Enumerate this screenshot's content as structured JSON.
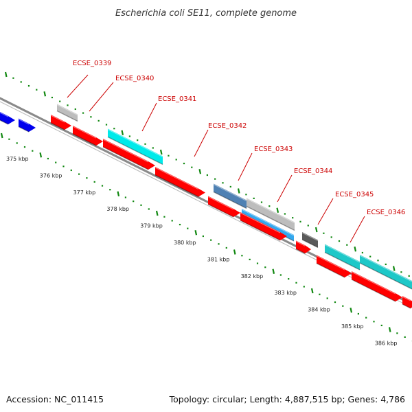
{
  "title": "Escherichia coli SE11, complete genome",
  "footer": {
    "accession": "Accession: NC_011415",
    "topology": "Topology: circular; Length: 4,887,515 bp; Genes: 4,786"
  },
  "colors": {
    "cds": "#ff0000",
    "blue": "#0000ee",
    "cyan": "#00eaea",
    "teal": "#1ec8c8",
    "steel": "#4f81b3",
    "skyblue": "#33a8ee",
    "lightgray": "#bdbdbd",
    "darkgray": "#5a5a5a",
    "axis": "#8a8a8a",
    "ticks": "#118811",
    "label": "#cc0000"
  },
  "scale_labels": [
    "375 kbp",
    "376 kbp",
    "377 kbp",
    "378 kbp",
    "379 kbp",
    "380 kbp",
    "381 kbp",
    "382 kbp",
    "383 kbp",
    "384 kbp",
    "385 kbp",
    "386 kbp"
  ],
  "gene_labels": [
    "ECSE_0339",
    "ECSE_0340",
    "ECSE_0341",
    "ECSE_0342",
    "ECSE_0343",
    "ECSE_0344",
    "ECSE_0345",
    "ECSE_0346"
  ]
}
